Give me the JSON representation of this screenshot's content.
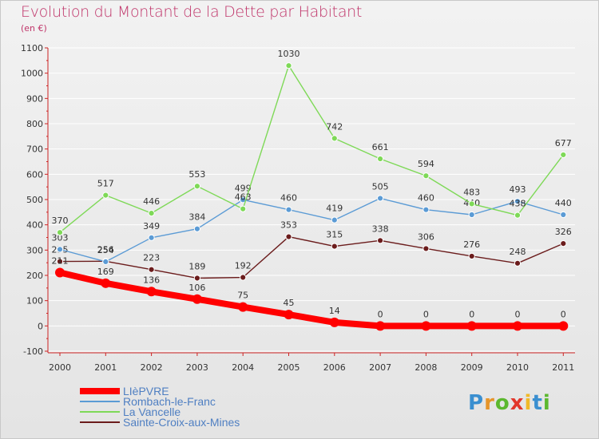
{
  "title": "Evolution du Montant de la Dette par Habitant",
  "subtitle": "(en €)",
  "logo": "Proxiti",
  "colors": {
    "title": "#c0356a",
    "axis": "#cc2222",
    "grid": "#ffffff",
    "logo": [
      "#3a8fd0",
      "#e6952a",
      "#5cb82f",
      "#e2372b",
      "#f0b928",
      "#3a8fd0",
      "#5cb82f"
    ]
  },
  "chart_data": {
    "type": "line",
    "title": "Evolution du Montant de la Dette par Habitant",
    "subtitle": "(en €)",
    "xlabel": "",
    "ylabel": "",
    "ylim": [
      -100,
      1100
    ],
    "yticks": [
      -100,
      0,
      100,
      200,
      300,
      400,
      500,
      600,
      700,
      800,
      900,
      1000,
      1100
    ],
    "x": [
      "2000",
      "2001",
      "2002",
      "2003",
      "2004",
      "2005",
      "2006",
      "2007",
      "2008",
      "2009",
      "2010",
      "2011"
    ],
    "grid": true,
    "legend_position": "bottom-left",
    "series": [
      {
        "name": "Sainte-Croix-aux-Mines",
        "color": "#6b1c1c",
        "values": [
          255,
          256,
          223,
          189,
          192,
          353,
          315,
          338,
          306,
          276,
          248,
          326
        ]
      },
      {
        "name": "Rombach-le-Franc",
        "color": "#5b9bd5",
        "values": [
          303,
          254,
          349,
          384,
          499,
          460,
          419,
          505,
          460,
          440,
          493,
          440
        ]
      },
      {
        "name": "La Vancelle",
        "color": "#7ed957",
        "values": [
          370,
          517,
          446,
          553,
          463,
          1030,
          742,
          661,
          594,
          483,
          438,
          677
        ]
      },
      {
        "name": "LIèPVRE",
        "color": "#ff0000",
        "values": [
          211,
          169,
          136,
          106,
          75,
          45,
          14,
          0,
          0,
          0,
          0,
          0
        ]
      }
    ],
    "legend_order": [
      "LIèPVRE",
      "Rombach-le-Franc",
      "La Vancelle",
      "Sainte-Croix-aux-Mines"
    ]
  }
}
